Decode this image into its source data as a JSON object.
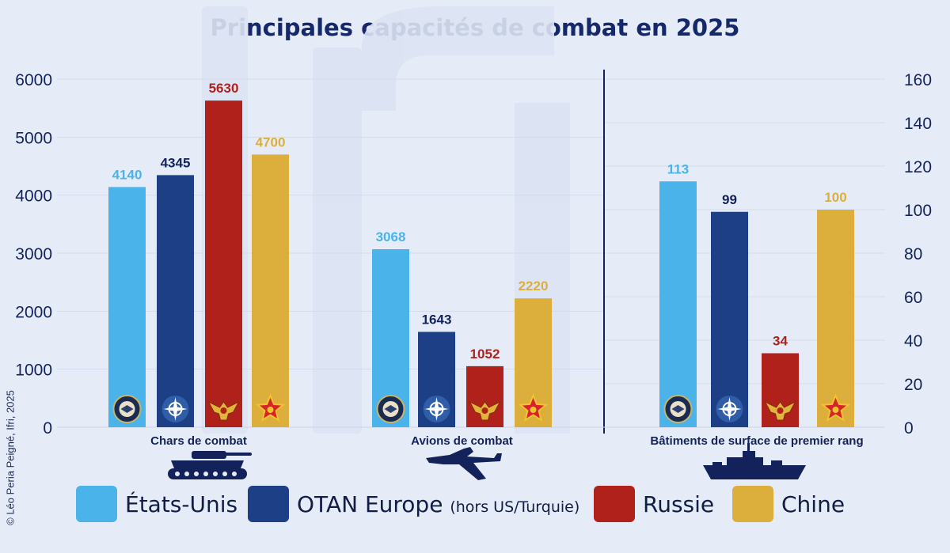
{
  "title": "Principales capacités de combat en 2025",
  "credit": "© Léo Peria Peigné, Ifri, 2025",
  "colors": {
    "etats_unis": "#4ab3ea",
    "otan": "#1c3f85",
    "russie": "#b0211b",
    "chine": "#dcaf3c"
  },
  "legend": {
    "etats_unis": "États-Unis",
    "otan": "OTAN Europe",
    "otan_note": "(hors US/Turquie)",
    "russie": "Russie",
    "chine": "Chine"
  },
  "chart_data": [
    {
      "type": "bar",
      "title": "Principales capacités de combat en 2025",
      "categories": [
        "Chars de combat",
        "Avions de combat"
      ],
      "series": [
        {
          "name": "États-Unis",
          "values": [
            4140,
            3068
          ]
        },
        {
          "name": "OTAN Europe (hors US/Turquie)",
          "values": [
            4345,
            1643
          ]
        },
        {
          "name": "Russie",
          "values": [
            5630,
            1052
          ]
        },
        {
          "name": "Chine",
          "values": [
            4700,
            2220
          ]
        }
      ],
      "axis": "left",
      "ylim": [
        0,
        6000
      ],
      "yticks": [
        0,
        1000,
        2000,
        3000,
        4000,
        5000,
        6000
      ]
    },
    {
      "type": "bar",
      "categories": [
        "Bâtiments de surface de premier rang"
      ],
      "series": [
        {
          "name": "États-Unis",
          "values": [
            113
          ]
        },
        {
          "name": "OTAN Europe (hors US/Turquie)",
          "values": [
            99
          ]
        },
        {
          "name": "Russie",
          "values": [
            34
          ]
        },
        {
          "name": "Chine",
          "values": [
            100
          ]
        }
      ],
      "axis": "right",
      "ylim": [
        0,
        160
      ],
      "yticks": [
        0,
        20,
        40,
        60,
        80,
        100,
        120,
        140,
        160
      ]
    }
  ],
  "icons": [
    "us-dod-seal-icon",
    "nato-compass-icon",
    "russia-eagle-icon",
    "china-star-icon"
  ],
  "group_icons": [
    "tank-icon",
    "fighter-jet-icon",
    "warship-icon"
  ]
}
